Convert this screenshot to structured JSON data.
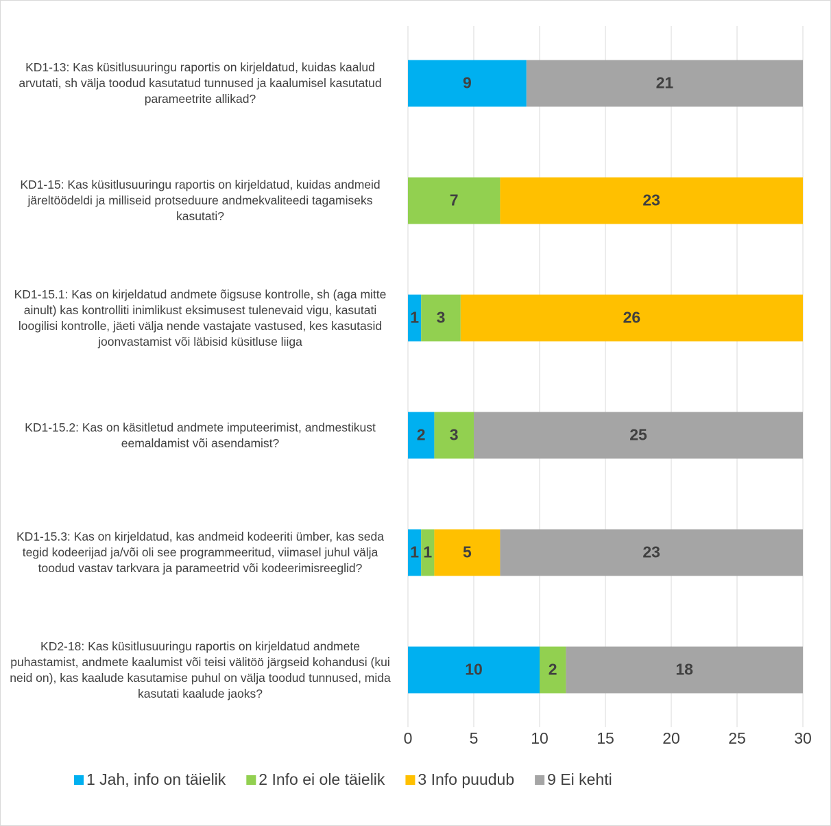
{
  "chart_data": {
    "type": "stacked_barh",
    "categories": [
      "KD1-13: Kas küsitlusuuringu raportis on kirjeldatud, kuidas kaalud arvutati, sh välja toodud kasutatud tunnused ja kaalumisel kasutatud parameetrite allikad?",
      "KD1-15: Kas küsitlusuuringu raportis on kirjeldatud, kuidas andmeid järeltöödeldi ja milliseid protseduure andmekvaliteedi tagamiseks kasutati?",
      "KD1-15.1: Kas on kirjeldatud andmete õigsuse kontrolle, sh (aga mitte ainult) kas kontrolliti inimlikust eksimusest tulenevaid vigu, kasutati loogilisi kontrolle, jäeti välja nende vastajate vastused, kes kasutasid joonvastamist või läbisid küsitluse liiga",
      "KD1-15.2: Kas on käsitletud andmete imputeerimist, andmestikust eemaldamist või asendamist?",
      "KD1-15.3: Kas on kirjeldatud, kas andmeid kodeeriti ümber, kas seda tegid kodeerijad ja/või oli see programmeeritud, viimasel juhul välja toodud vastav tarkvara ja parameetrid või kodeerimisreeglid?",
      "KD2-18: Kas küsitlusuuringu raportis on kirjeldatud andmete puhastamist, andmete kaalumist või teisi välitöö järgseid kohandusi (kui neid on), kas kaalude kasutamise puhul on välja toodud tunnused, mida kasutati kaalude jaoks?"
    ],
    "series": [
      {
        "name": "1 Jah, info on täielik",
        "color": "#00b0f0",
        "values": [
          9,
          0,
          1,
          2,
          1,
          10
        ]
      },
      {
        "name": "2 Info ei ole täielik",
        "color": "#92d050",
        "values": [
          0,
          7,
          3,
          3,
          1,
          2
        ]
      },
      {
        "name": "3 Info puudub",
        "color": "#ffc000",
        "values": [
          0,
          23,
          26,
          0,
          5,
          0
        ]
      },
      {
        "name": "9 Ei kehti",
        "color": "#a5a5a5",
        "values": [
          21,
          0,
          0,
          25,
          23,
          18
        ]
      }
    ],
    "xlim": [
      0,
      30
    ],
    "xticks": [
      0,
      5,
      10,
      15,
      20,
      25,
      30
    ],
    "grid": true,
    "legend": "bottom"
  }
}
